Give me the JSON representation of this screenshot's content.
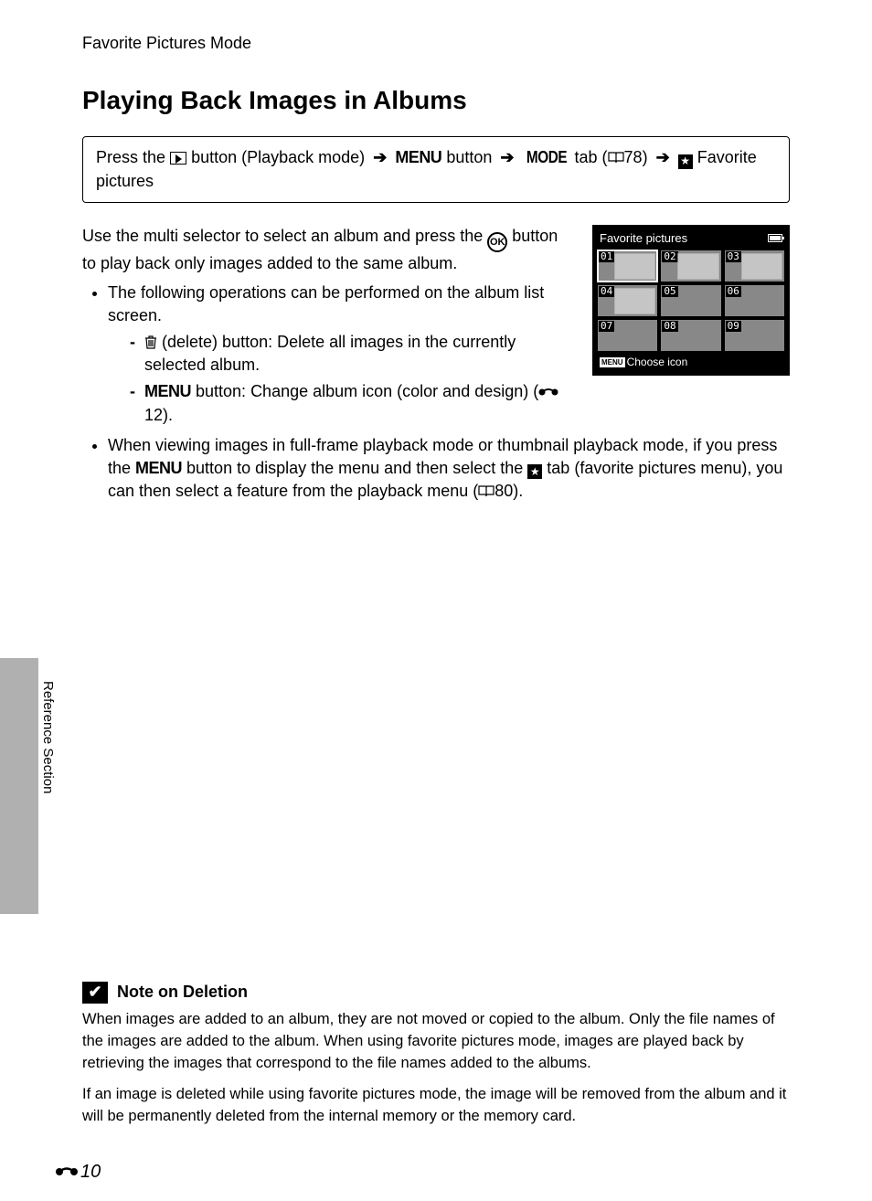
{
  "breadcrumb": "Favorite Pictures Mode",
  "heading": "Playing Back Images in Albums",
  "navbox": {
    "press": "Press the",
    "playback_mode": "button (Playback mode)",
    "menu": "MENU",
    "button_word": "button",
    "mode": "MODE",
    "tab_word": "tab (",
    "ref_78": "78)",
    "fav": "Favorite pictures"
  },
  "intro": {
    "line1a": "Use the multi selector to select an album and press the ",
    "line1b": " button to play back only images added to the same album.",
    "ok": "OK"
  },
  "bullets": {
    "b1": "The following operations can be performed on the album list screen.",
    "s1": "(delete) button: Delete all images in the currently selected album.",
    "s2a": "button: Change album icon (color and design) (",
    "s2b": "12).",
    "b2a": "When viewing images in full-frame playback mode or thumbnail playback mode, if you press the ",
    "b2b": " button to display the menu and then select the ",
    "b2c": " tab (favorite pictures menu), you can then select a feature from the playback menu (",
    "b2d": "80)."
  },
  "album_screen": {
    "title": "Favorite pictures",
    "cells": [
      "01",
      "02",
      "03",
      "04",
      "05",
      "06",
      "07",
      "08",
      "09"
    ],
    "thumbs": [
      true,
      true,
      true,
      true,
      false,
      false,
      false,
      false,
      false
    ],
    "selected": 0,
    "footer_badge": "MENU",
    "footer_text": "Choose icon"
  },
  "side_label": "Reference Section",
  "note": {
    "title": "Note on Deletion",
    "p1": "When images are added to an album, they are not moved or copied to the album. Only the file names of the images are added to the album. When using favorite pictures mode, images are played back by retrieving the images that correspond to the file names added to the albums.",
    "p2": "If an image is deleted while using favorite pictures mode, the image will be removed from the album and it will be permanently deleted from the internal memory or the memory card."
  },
  "page_number": "10"
}
